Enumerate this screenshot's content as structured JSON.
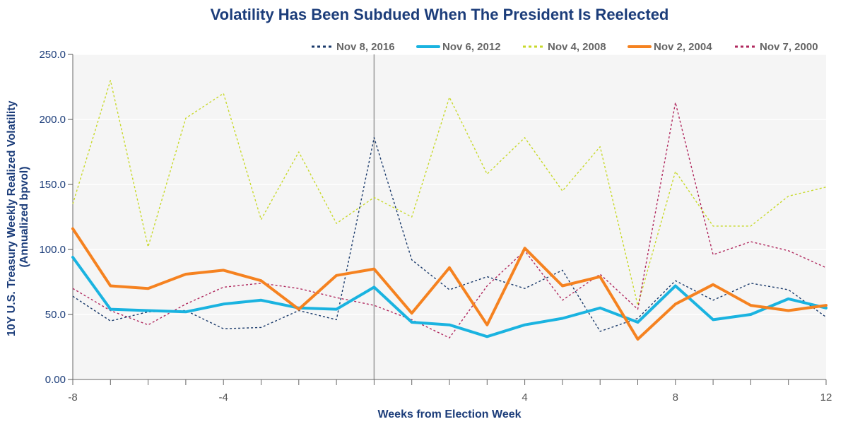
{
  "chart_data": {
    "type": "line",
    "title": "Volatility Has Been Subdued When The President Is Reelected",
    "xlabel": "Weeks from Election Week",
    "ylabel": "10Y U.S. Treasury Weekly Realized Volatility (Annualized bpvol)",
    "ylabel_lines": [
      "10Y U.S. Treasury Weekly Realized Volatility",
      "(Annualized bpvol)"
    ],
    "xlim": [
      -8,
      12
    ],
    "ylim": [
      0,
      250
    ],
    "x_ticks": [
      -8,
      -4,
      4,
      8,
      12
    ],
    "x_tick_labels": [
      "-8",
      "-4",
      "4",
      "8",
      "12"
    ],
    "y_ticks": [
      0,
      50,
      100,
      150,
      200,
      250
    ],
    "y_tick_labels": [
      "0.00",
      "50.0",
      "100.0",
      "150.0",
      "200.0",
      "250.0"
    ],
    "vertical_marker_x": 0,
    "grid": "horizontal",
    "legend_position": "top-right",
    "x": [
      -8,
      -7,
      -6,
      -5,
      -4,
      -3,
      -2,
      -1,
      0,
      1,
      2,
      3,
      4,
      5,
      6,
      7,
      8,
      9,
      10,
      11,
      12
    ],
    "series": [
      {
        "name": "Nov 8, 2016",
        "color": "#1a3a6b",
        "style": "dotted",
        "values": [
          64,
          45,
          52,
          53,
          39,
          40,
          53,
          46,
          186,
          92,
          69,
          79,
          70,
          84,
          37,
          47,
          76,
          61,
          74,
          69,
          48
        ]
      },
      {
        "name": "Nov 6, 2012",
        "color": "#1ab3e0",
        "style": "solid",
        "values": [
          94,
          54,
          53,
          52,
          58,
          61,
          55,
          54,
          71,
          44,
          42,
          33,
          42,
          47,
          55,
          44,
          72,
          46,
          50,
          62,
          55
        ]
      },
      {
        "name": "Nov 4, 2008",
        "color": "#c8d92b",
        "style": "dotted",
        "values": [
          135,
          230,
          102,
          201,
          220,
          123,
          175,
          120,
          140,
          125,
          217,
          158,
          186,
          145,
          179,
          57,
          160,
          118,
          118,
          141,
          148
        ]
      },
      {
        "name": "Nov 2, 2004",
        "color": "#f58220",
        "style": "solid",
        "values": [
          116,
          72,
          70,
          81,
          84,
          76,
          54,
          80,
          85,
          51,
          86,
          42,
          101,
          72,
          79,
          31,
          58,
          73,
          57,
          53,
          57
        ]
      },
      {
        "name": "Nov 7, 2000",
        "color": "#b0285e",
        "style": "dotted",
        "values": [
          70,
          53,
          42,
          58,
          71,
          74,
          70,
          63,
          57,
          46,
          32,
          72,
          99,
          61,
          81,
          54,
          213,
          96,
          106,
          99,
          86
        ]
      }
    ]
  }
}
